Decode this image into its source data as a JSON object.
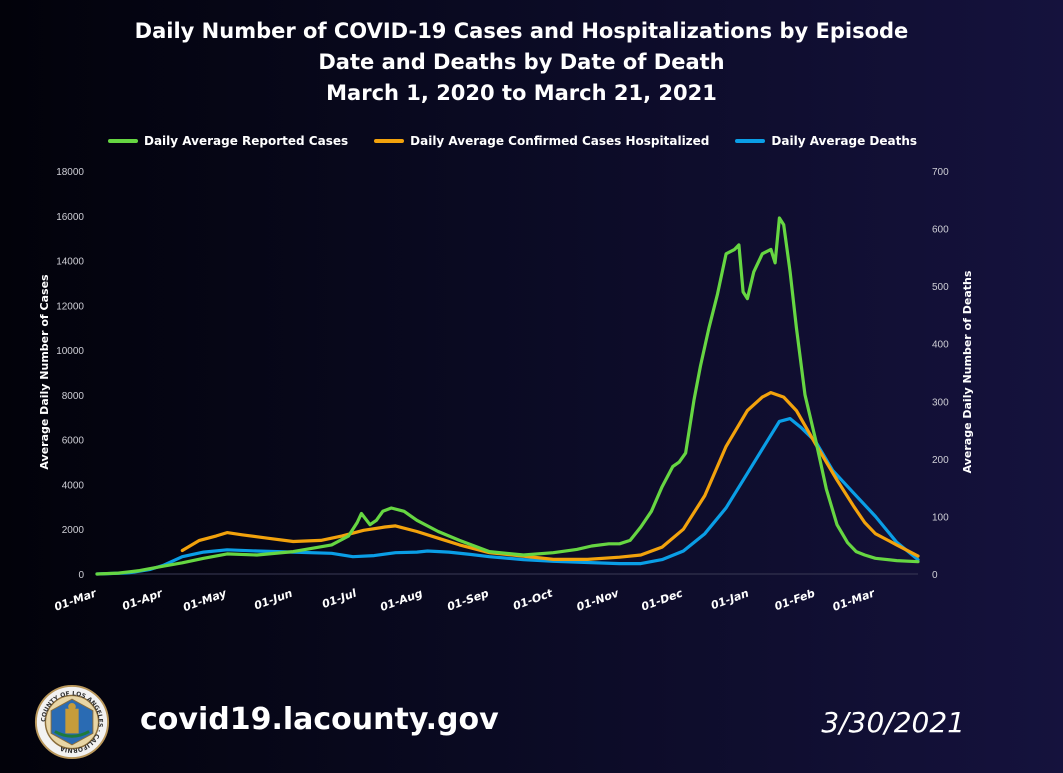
{
  "colors": {
    "cases": "#66d642",
    "hospitalized": "#f2a20c",
    "deaths": "#0a9ee6",
    "gridline": "#2a2a44"
  },
  "footer": {
    "url": "covid19.lacounty.gov",
    "date": "3/30/2021",
    "seal_icon": "la-county-seal-icon",
    "seal_text": "COUNTY OF LOS ANGELES · CALIFORNIA"
  },
  "chart_data": {
    "type": "line",
    "title_lines": [
      "Daily Number of COVID-19 Cases and Hospitalizations by Episode",
      "Date and Deaths by Date of Death",
      "March 1, 2020 to March 21, 2021"
    ],
    "x_unit": "days since 01-Mar-2020",
    "x_range": [
      0,
      385
    ],
    "x_ticks": [
      {
        "day": 0,
        "label": "01-Mar"
      },
      {
        "day": 31,
        "label": "01-Apr"
      },
      {
        "day": 61,
        "label": "01-May"
      },
      {
        "day": 92,
        "label": "01-Jun"
      },
      {
        "day": 122,
        "label": "01-Jul"
      },
      {
        "day": 153,
        "label": "01-Aug"
      },
      {
        "day": 184,
        "label": "01-Sep"
      },
      {
        "day": 214,
        "label": "01-Oct"
      },
      {
        "day": 245,
        "label": "01-Nov"
      },
      {
        "day": 275,
        "label": "01-Dec"
      },
      {
        "day": 306,
        "label": "01-Jan"
      },
      {
        "day": 337,
        "label": "01-Feb"
      },
      {
        "day": 365,
        "label": "01-Mar"
      }
    ],
    "y_left": {
      "label": "Average Daily Number of Cases",
      "range": [
        0,
        18000
      ],
      "ticks": [
        "0",
        "2000",
        "4000",
        "6000",
        "8000",
        "10000",
        "12000",
        "14000",
        "16000",
        "18000"
      ]
    },
    "y_right": {
      "label": "Average Daily Number of Deaths",
      "range": [
        0,
        700
      ],
      "ticks": [
        "0",
        "100",
        "200",
        "300",
        "400",
        "500",
        "600",
        "700"
      ]
    },
    "series": [
      {
        "name": "Daily Average Reported Cases",
        "axis": "left",
        "color_key": "cases",
        "points": [
          [
            0,
            0
          ],
          [
            10,
            40
          ],
          [
            20,
            150
          ],
          [
            31,
            350
          ],
          [
            40,
            500
          ],
          [
            50,
            700
          ],
          [
            61,
            900
          ],
          [
            75,
            850
          ],
          [
            92,
            1000
          ],
          [
            110,
            1300
          ],
          [
            118,
            1700
          ],
          [
            122,
            2300
          ],
          [
            124,
            2700
          ],
          [
            128,
            2200
          ],
          [
            131,
            2400
          ],
          [
            134,
            2800
          ],
          [
            138,
            2950
          ],
          [
            144,
            2800
          ],
          [
            150,
            2400
          ],
          [
            160,
            1900
          ],
          [
            170,
            1500
          ],
          [
            184,
            1000
          ],
          [
            200,
            850
          ],
          [
            214,
            950
          ],
          [
            225,
            1100
          ],
          [
            232,
            1250
          ],
          [
            240,
            1350
          ],
          [
            245,
            1350
          ],
          [
            250,
            1500
          ],
          [
            255,
            2100
          ],
          [
            260,
            2800
          ],
          [
            265,
            3900
          ],
          [
            270,
            4800
          ],
          [
            273,
            5000
          ],
          [
            276,
            5400
          ],
          [
            280,
            7800
          ],
          [
            283,
            9300
          ],
          [
            287,
            11000
          ],
          [
            291,
            12500
          ],
          [
            295,
            14300
          ],
          [
            299,
            14500
          ],
          [
            301,
            14700
          ],
          [
            303,
            12600
          ],
          [
            305,
            12300
          ],
          [
            308,
            13500
          ],
          [
            312,
            14300
          ],
          [
            316,
            14500
          ],
          [
            318,
            13900
          ],
          [
            320,
            15900
          ],
          [
            322,
            15600
          ],
          [
            325,
            13500
          ],
          [
            328,
            11000
          ],
          [
            332,
            8000
          ],
          [
            337,
            6000
          ],
          [
            342,
            3800
          ],
          [
            347,
            2200
          ],
          [
            352,
            1400
          ],
          [
            356,
            1000
          ],
          [
            360,
            850
          ],
          [
            365,
            700
          ],
          [
            375,
            600
          ],
          [
            385,
            550
          ]
        ]
      },
      {
        "name": "Daily Average Confirmed Cases Hospitalized",
        "axis": "left",
        "color_key": "hospitalized",
        "points": [
          [
            40,
            1050
          ],
          [
            48,
            1500
          ],
          [
            56,
            1700
          ],
          [
            61,
            1850
          ],
          [
            68,
            1750
          ],
          [
            80,
            1600
          ],
          [
            92,
            1450
          ],
          [
            105,
            1500
          ],
          [
            115,
            1700
          ],
          [
            125,
            1950
          ],
          [
            135,
            2100
          ],
          [
            140,
            2150
          ],
          [
            150,
            1900
          ],
          [
            160,
            1600
          ],
          [
            170,
            1300
          ],
          [
            184,
            950
          ],
          [
            200,
            800
          ],
          [
            214,
            650
          ],
          [
            230,
            650
          ],
          [
            245,
            750
          ],
          [
            255,
            850
          ],
          [
            265,
            1200
          ],
          [
            275,
            2000
          ],
          [
            285,
            3500
          ],
          [
            295,
            5700
          ],
          [
            305,
            7300
          ],
          [
            312,
            7900
          ],
          [
            316,
            8100
          ],
          [
            322,
            7900
          ],
          [
            328,
            7300
          ],
          [
            337,
            5800
          ],
          [
            347,
            4200
          ],
          [
            355,
            3000
          ],
          [
            360,
            2300
          ],
          [
            365,
            1800
          ],
          [
            375,
            1300
          ],
          [
            385,
            800
          ]
        ]
      },
      {
        "name": "Daily Average Deaths",
        "axis": "right",
        "color_key": "deaths",
        "points": [
          [
            0,
            0
          ],
          [
            15,
            2
          ],
          [
            25,
            8
          ],
          [
            31,
            15
          ],
          [
            40,
            30
          ],
          [
            50,
            38
          ],
          [
            61,
            42
          ],
          [
            75,
            40
          ],
          [
            92,
            38
          ],
          [
            110,
            36
          ],
          [
            120,
            30
          ],
          [
            130,
            32
          ],
          [
            140,
            37
          ],
          [
            150,
            38
          ],
          [
            155,
            40
          ],
          [
            165,
            38
          ],
          [
            175,
            34
          ],
          [
            184,
            30
          ],
          [
            200,
            25
          ],
          [
            214,
            22
          ],
          [
            230,
            20
          ],
          [
            245,
            18
          ],
          [
            255,
            18
          ],
          [
            265,
            25
          ],
          [
            275,
            40
          ],
          [
            285,
            70
          ],
          [
            295,
            115
          ],
          [
            305,
            175
          ],
          [
            315,
            235
          ],
          [
            320,
            265
          ],
          [
            325,
            270
          ],
          [
            330,
            255
          ],
          [
            337,
            230
          ],
          [
            345,
            180
          ],
          [
            355,
            140
          ],
          [
            365,
            100
          ],
          [
            375,
            55
          ],
          [
            385,
            25
          ]
        ]
      }
    ]
  }
}
